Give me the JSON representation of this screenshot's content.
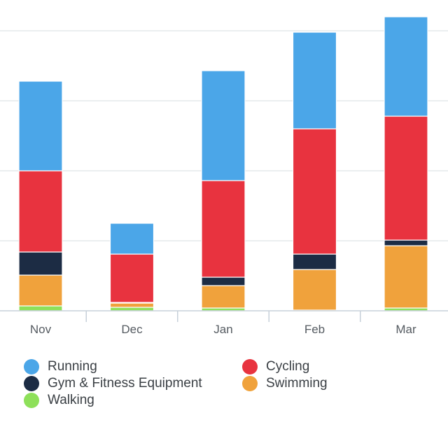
{
  "chart_data": {
    "type": "bar",
    "stacked": true,
    "categories": [
      "Nov",
      "Dec",
      "Jan",
      "Feb",
      "Mar"
    ],
    "series": [
      {
        "name": "Walking",
        "color": "#8ee05a",
        "values": [
          7,
          5,
          4,
          1,
          4
        ]
      },
      {
        "name": "Swimming",
        "color": "#f0a23c",
        "values": [
          44,
          6,
          32,
          58,
          89
        ]
      },
      {
        "name": "Gym & Fitness Equipment",
        "color": "#1c2c44",
        "values": [
          33,
          1,
          12,
          22,
          8
        ]
      },
      {
        "name": "Cycling",
        "color": "#e8333f",
        "values": [
          116,
          69,
          138,
          179,
          177
        ]
      },
      {
        "name": "Running",
        "color": "#4ba6e8",
        "values": [
          128,
          44,
          157,
          138,
          142
        ]
      }
    ],
    "ylim": [
      0,
      420
    ],
    "grid": true,
    "y_tick_labels_visible": false,
    "legend_position": "bottom"
  },
  "legend": {
    "items": [
      {
        "name": "Running",
        "color": "#4ba6e8"
      },
      {
        "name": "Cycling",
        "color": "#e8333f"
      },
      {
        "name": "Gym & Fitness Equipment",
        "color": "#1c2c44"
      },
      {
        "name": "Swimming",
        "color": "#f0a23c"
      },
      {
        "name": "Walking",
        "color": "#8ee05a"
      }
    ]
  }
}
